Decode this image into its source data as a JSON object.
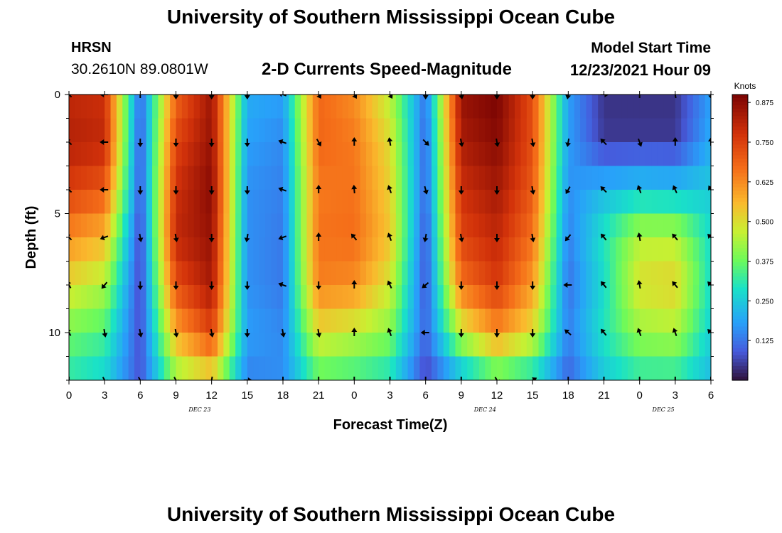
{
  "header": {
    "title": "University of Southern Mississippi Ocean Cube",
    "station": "HRSN",
    "coordinates": "30.2610N  89.0801W",
    "subtitle": "2-D Currents Speed-Magnitude",
    "model_start_label": "Model Start Time",
    "model_start_value": "12/23/2021 Hour 09"
  },
  "footer": {
    "title": "University of Southern Mississippi Ocean Cube"
  },
  "chart_data": {
    "type": "heatmap",
    "xlabel": "Forecast Time(Z)",
    "ylabel": "Depth (ft)",
    "colorbar_label": "Knots",
    "x_hours_from_start": [
      0,
      3,
      6,
      9,
      12,
      15,
      18,
      21,
      24,
      27,
      30,
      33,
      36,
      39,
      42,
      45,
      48,
      51,
      54
    ],
    "x_tick_labels": [
      "0",
      "3",
      "6",
      "9",
      "12",
      "15",
      "18",
      "21",
      "0",
      "3",
      "6",
      "9",
      "12",
      "15",
      "18",
      "21",
      "0",
      "3",
      "6"
    ],
    "xlim": [
      0,
      54
    ],
    "date_labels": [
      {
        "label": "DEC 23",
        "hour": 11
      },
      {
        "label": "DEC 24",
        "hour": 35
      },
      {
        "label": "DEC 25",
        "hour": 50
      }
    ],
    "y_ticks": [
      0,
      5,
      10
    ],
    "ylim": [
      0,
      12
    ],
    "colorbar_ticks": [
      0.125,
      0.25,
      0.375,
      0.5,
      0.625,
      0.75,
      0.875
    ],
    "colorbar_tick_labels": [
      "0.125",
      "0.250",
      "0.375",
      "0.500",
      "0.625",
      "0.750",
      "0.875"
    ],
    "color_range": [
      0,
      0.9
    ],
    "depth_levels_ft": [
      0,
      2,
      4,
      6,
      8,
      10,
      12
    ],
    "speed_grid_note": "rows = depth levels, columns = x_hours_from_start, values in knots",
    "speed_grid": [
      [
        0.8,
        0.78,
        0.1,
        0.68,
        0.85,
        0.2,
        0.18,
        0.68,
        0.62,
        0.45,
        0.12,
        0.86,
        0.9,
        0.72,
        0.18,
        0.04,
        0.04,
        0.04,
        0.18
      ],
      [
        0.82,
        0.8,
        0.08,
        0.74,
        0.86,
        0.18,
        0.15,
        0.68,
        0.65,
        0.5,
        0.1,
        0.83,
        0.88,
        0.72,
        0.18,
        0.05,
        0.05,
        0.05,
        0.2
      ],
      [
        0.75,
        0.7,
        0.08,
        0.78,
        0.88,
        0.16,
        0.14,
        0.65,
        0.66,
        0.52,
        0.1,
        0.78,
        0.84,
        0.7,
        0.16,
        0.22,
        0.25,
        0.24,
        0.25
      ],
      [
        0.62,
        0.56,
        0.06,
        0.8,
        0.86,
        0.16,
        0.13,
        0.66,
        0.67,
        0.54,
        0.08,
        0.74,
        0.8,
        0.66,
        0.14,
        0.3,
        0.45,
        0.45,
        0.28
      ],
      [
        0.5,
        0.44,
        0.06,
        0.72,
        0.84,
        0.16,
        0.13,
        0.64,
        0.62,
        0.48,
        0.08,
        0.66,
        0.76,
        0.6,
        0.12,
        0.28,
        0.5,
        0.52,
        0.28
      ],
      [
        0.38,
        0.34,
        0.07,
        0.58,
        0.74,
        0.18,
        0.15,
        0.5,
        0.46,
        0.4,
        0.1,
        0.46,
        0.62,
        0.5,
        0.14,
        0.3,
        0.42,
        0.44,
        0.26
      ],
      [
        0.3,
        0.26,
        0.08,
        0.4,
        0.48,
        0.14,
        0.16,
        0.34,
        0.32,
        0.28,
        0.06,
        0.2,
        0.32,
        0.26,
        0.1,
        0.24,
        0.3,
        0.3,
        0.22
      ]
    ],
    "vector_depths_ft": [
      0,
      2,
      4,
      6,
      8,
      10,
      12
    ],
    "vector_directions_deg": [
      [
        225,
        180,
        270,
        90,
        90,
        90,
        200,
        60,
        60,
        60,
        90,
        80,
        90,
        90,
        100,
        0,
        270,
        260,
        80
      ],
      [
        225,
        180,
        90,
        90,
        90,
        90,
        200,
        60,
        270,
        260,
        45,
        80,
        80,
        80,
        100,
        225,
        70,
        270,
        270
      ],
      [
        225,
        180,
        90,
        90,
        90,
        90,
        200,
        270,
        265,
        250,
        75,
        90,
        90,
        80,
        120,
        225,
        250,
        245,
        240
      ],
      [
        225,
        160,
        80,
        80,
        90,
        100,
        160,
        270,
        230,
        250,
        100,
        80,
        90,
        80,
        130,
        230,
        260,
        230,
        225
      ],
      [
        240,
        130,
        90,
        90,
        90,
        90,
        200,
        90,
        270,
        245,
        140,
        90,
        90,
        90,
        180,
        230,
        260,
        230,
        225
      ],
      [
        240,
        80,
        80,
        80,
        80,
        90,
        80,
        80,
        270,
        250,
        180,
        90,
        90,
        90,
        220,
        230,
        250,
        250,
        225
      ],
      [
        90,
        60,
        60,
        60,
        100,
        0,
        90,
        90,
        90,
        90,
        90,
        90,
        60,
        330,
        90,
        90,
        90,
        90,
        90
      ]
    ]
  }
}
